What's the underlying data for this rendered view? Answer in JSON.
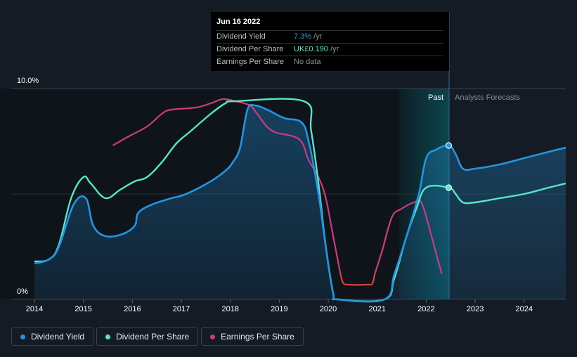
{
  "tooltip": {
    "date": "Jun 16 2022",
    "rows": [
      {
        "label": "Dividend Yield",
        "value": "7.3%",
        "unit": " /yr"
      },
      {
        "label": "Dividend Per Share",
        "value": "UK£0.190",
        "unit": " /yr"
      },
      {
        "label": "Earnings Per Share",
        "value": "No data",
        "unit": ""
      }
    ]
  },
  "regions": {
    "past_label": "Past",
    "forecast_label": "Analysts Forecasts"
  },
  "legend": [
    {
      "label": "Dividend Yield",
      "color": "#2394df"
    },
    {
      "label": "Dividend Per Share",
      "color": "#58e6c6"
    },
    {
      "label": "Earnings Per Share",
      "color": "#cb3b80"
    }
  ],
  "colors": {
    "background": "#151b24",
    "dividend_yield": "#2394df",
    "dividend_per_share": "#58e6c6",
    "earnings_per_share": "#cb3b80",
    "earnings_negative": "#e0403a"
  },
  "chart_data": {
    "type": "line",
    "title": "",
    "xlabel": "",
    "ylabel": "",
    "xlim": [
      2014,
      2024.85
    ],
    "ylim": [
      0,
      10
    ],
    "y_tick_labels": [
      "10.0%",
      "0%"
    ],
    "x_tick_labels": [
      "2014",
      "2015",
      "2016",
      "2017",
      "2018",
      "2019",
      "2020",
      "2021",
      "2022",
      "2023",
      "2024"
    ],
    "past_forecast_boundary": 2022.46,
    "highlight_start": 2021.45,
    "series": [
      {
        "name": "Dividend Yield",
        "points": [
          [
            2014,
            1.7
          ],
          [
            2014.3,
            1.9
          ],
          [
            2014.5,
            2.5
          ],
          [
            2014.8,
            4.5
          ],
          [
            2015.05,
            4.8
          ],
          [
            2015.2,
            3.5
          ],
          [
            2015.45,
            3.0
          ],
          [
            2015.8,
            3.1
          ],
          [
            2016.05,
            3.5
          ],
          [
            2016.12,
            4.1
          ],
          [
            2016.4,
            4.5
          ],
          [
            2016.8,
            4.8
          ],
          [
            2017.1,
            5.0
          ],
          [
            2017.6,
            5.6
          ],
          [
            2017.9,
            6.1
          ],
          [
            2018.05,
            6.5
          ],
          [
            2018.2,
            7.2
          ],
          [
            2018.35,
            9.0
          ],
          [
            2018.5,
            9.2
          ],
          [
            2018.75,
            9.0
          ],
          [
            2019.1,
            8.6
          ],
          [
            2019.45,
            8.4
          ],
          [
            2019.6,
            7.5
          ],
          [
            2019.8,
            5.0
          ],
          [
            2019.95,
            2.5
          ],
          [
            2020.1,
            0.3
          ],
          [
            2020.2,
            0
          ],
          [
            2021.15,
            0
          ],
          [
            2021.35,
            1.2
          ],
          [
            2021.6,
            3.0
          ],
          [
            2021.85,
            5.0
          ],
          [
            2022.0,
            6.7
          ],
          [
            2022.2,
            7.1
          ],
          [
            2022.46,
            7.3
          ],
          [
            2022.6,
            6.9
          ],
          [
            2022.75,
            6.2
          ],
          [
            2023.0,
            6.2
          ],
          [
            2023.5,
            6.4
          ],
          [
            2024.0,
            6.7
          ],
          [
            2024.5,
            7.0
          ],
          [
            2024.85,
            7.2
          ]
        ]
      },
      {
        "name": "Dividend Per Share",
        "points": [
          [
            2014,
            1.8
          ],
          [
            2014.3,
            1.9
          ],
          [
            2014.5,
            2.6
          ],
          [
            2014.75,
            4.8
          ],
          [
            2015.0,
            5.8
          ],
          [
            2015.15,
            5.5
          ],
          [
            2015.45,
            4.8
          ],
          [
            2015.75,
            5.2
          ],
          [
            2016.05,
            5.6
          ],
          [
            2016.3,
            5.8
          ],
          [
            2016.6,
            6.5
          ],
          [
            2016.9,
            7.4
          ],
          [
            2017.2,
            8.0
          ],
          [
            2017.6,
            8.8
          ],
          [
            2017.9,
            9.3
          ],
          [
            2018.1,
            9.4
          ],
          [
            2019.5,
            9.4
          ],
          [
            2019.65,
            8.0
          ],
          [
            2019.8,
            5.5
          ],
          [
            2019.95,
            2.5
          ],
          [
            2020.1,
            0.3
          ],
          [
            2020.2,
            0
          ],
          [
            2021.15,
            0
          ],
          [
            2021.35,
            1.0
          ],
          [
            2021.6,
            3.0
          ],
          [
            2021.8,
            4.3
          ],
          [
            2022.0,
            5.3
          ],
          [
            2022.46,
            5.3
          ],
          [
            2022.6,
            5.0
          ],
          [
            2022.75,
            4.6
          ],
          [
            2023.0,
            4.6
          ],
          [
            2023.5,
            4.8
          ],
          [
            2024.0,
            5.0
          ],
          [
            2024.5,
            5.3
          ],
          [
            2024.85,
            5.5
          ]
        ]
      },
      {
        "name": "Earnings Per Share",
        "points": [
          [
            2015.6,
            7.3
          ],
          [
            2015.9,
            7.7
          ],
          [
            2016.3,
            8.2
          ],
          [
            2016.6,
            8.8
          ],
          [
            2016.8,
            9.0
          ],
          [
            2017.3,
            9.1
          ],
          [
            2017.6,
            9.3
          ],
          [
            2017.85,
            9.5
          ],
          [
            2018.1,
            9.4
          ],
          [
            2018.4,
            9.2
          ],
          [
            2018.55,
            8.8
          ],
          [
            2018.85,
            8.0
          ],
          [
            2019.4,
            7.6
          ],
          [
            2019.6,
            6.6
          ],
          [
            2019.8,
            5.8
          ],
          [
            2019.95,
            4.8
          ],
          [
            2020.1,
            3.0
          ],
          [
            2020.25,
            1.2
          ],
          [
            2020.3,
            0.8
          ],
          [
            2020.4,
            0.7
          ],
          [
            2020.8,
            0.7
          ],
          [
            2020.9,
            0.75
          ],
          [
            2020.95,
            1.2
          ],
          [
            2021.1,
            2.3
          ],
          [
            2021.3,
            3.9
          ],
          [
            2021.5,
            4.3
          ],
          [
            2021.75,
            4.6
          ],
          [
            2021.9,
            4.6
          ],
          [
            2022.05,
            3.5
          ],
          [
            2022.2,
            2.2
          ],
          [
            2022.32,
            1.2
          ]
        ]
      }
    ],
    "negative_segment": {
      "series": "Earnings Per Share",
      "x_range": [
        2020.25,
        2020.95
      ]
    }
  }
}
